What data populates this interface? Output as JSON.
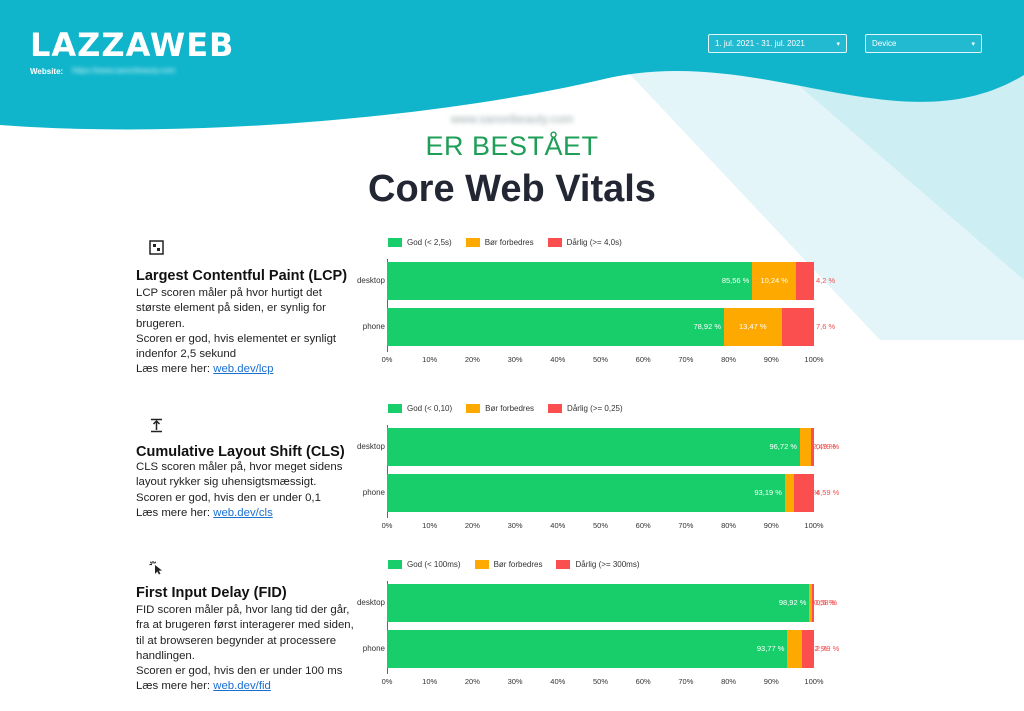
{
  "header": {
    "brand": "LAZZAWEB",
    "website_label": "Website:",
    "website_value": "https://www.sanoriteauty.com",
    "date_range": "1. jul. 2021 - 31. jul. 2021",
    "device_label": "Device"
  },
  "hero": {
    "url": "www.sanoribeauty.com",
    "status": "ER BESTÅET",
    "title": "Core Web Vitals"
  },
  "colors": {
    "good": "#17ce6a",
    "improve": "#fea900",
    "poor": "#fb4f4f",
    "header": "#10b5cc"
  },
  "metrics": [
    {
      "icon": "largest-contentful-paint-icon",
      "title": "Largest Contentful Paint (LCP)",
      "desc": [
        "LCP scoren måler på hvor hurtigt det",
        "største element på siden, er synlig for",
        "brugeren.",
        "Scoren er god, hvis elementet er synligt",
        "indenfor 2,5 sekund"
      ],
      "read_more_label": "Læs mere her:",
      "read_more_link": "web.dev/lcp",
      "legend": [
        "God (< 2,5s)",
        "Bør forbedres",
        "Dårlig (>= 4,0s)"
      ]
    },
    {
      "icon": "cumulative-layout-shift-icon",
      "title": "Cumulative Layout Shift (CLS)",
      "desc": [
        "CLS scoren måler på, hvor meget sidens",
        "layout rykker sig uhensigtsmæssigt.",
        "Scoren er god, hvis den er under 0,1"
      ],
      "read_more_label": "Læs mere her:",
      "read_more_link": "web.dev/cls",
      "legend": [
        "God (< 0,10)",
        "Bør forbedres",
        "Dårlig (>= 0,25)"
      ]
    },
    {
      "icon": "first-input-delay-icon",
      "title": "First Input Delay (FID)",
      "desc": [
        "FID scoren måler på, hvor lang tid der går,",
        "fra at brugeren først interagerer med siden,",
        "til at browseren begynder at processere",
        "handlingen.",
        "Scoren er god, hvis den er under 100 ms"
      ],
      "read_more_label": "Læs mere her:",
      "read_more_link": "web.dev/fid",
      "legend": [
        "God (< 100ms)",
        "Bør forbedres",
        "Dårlig (>= 300ms)"
      ]
    }
  ],
  "chart_data": [
    {
      "type": "bar",
      "orientation": "horizontal-stacked",
      "categories": [
        "desktop",
        "phone"
      ],
      "series": [
        {
          "name": "God (< 2,5s)",
          "values": [
            85.56,
            78.92
          ],
          "labels": [
            "85,56 %",
            "78,92 %"
          ]
        },
        {
          "name": "Bør forbedres",
          "values": [
            10.24,
            13.47
          ],
          "labels": [
            "10,24 %",
            "13,47 %"
          ]
        },
        {
          "name": "Dårlig (>= 4,0s)",
          "values": [
            4.2,
            7.6
          ],
          "labels": [
            "4,2 %",
            "7,6 %"
          ]
        }
      ],
      "xlim": [
        0,
        100
      ],
      "xticks": [
        "0%",
        "10%",
        "20%",
        "30%",
        "40%",
        "50%",
        "60%",
        "70%",
        "80%",
        "90%",
        "100%"
      ],
      "legend_position": "top"
    },
    {
      "type": "bar",
      "orientation": "horizontal-stacked",
      "categories": [
        "desktop",
        "phone"
      ],
      "series": [
        {
          "name": "God (< 0,10)",
          "values": [
            96.72,
            93.19
          ],
          "labels": [
            "96,72 %",
            "93,19 %"
          ]
        },
        {
          "name": "Bør forbedres",
          "values": [
            2.49,
            2.22
          ],
          "labels": [
            "2,49 %",
            "2,22 %"
          ]
        },
        {
          "name": "Dårlig (>= 0,25)",
          "values": [
            0.79,
            4.59
          ],
          "labels": [
            "0,79 %",
            "4,59 %"
          ]
        }
      ],
      "xlim": [
        0,
        100
      ],
      "xticks": [
        "0%",
        "10%",
        "20%",
        "30%",
        "40%",
        "50%",
        "60%",
        "70%",
        "80%",
        "90%",
        "100%"
      ],
      "legend_position": "top"
    },
    {
      "type": "bar",
      "orientation": "horizontal-stacked",
      "categories": [
        "desktop",
        "phone"
      ],
      "series": [
        {
          "name": "God (< 100ms)",
          "values": [
            98.92,
            93.77
          ],
          "labels": [
            "98,92 %",
            "93,77 %"
          ]
        },
        {
          "name": "Bør forbedres",
          "values": [
            0.58,
            3.42
          ],
          "labels": [
            "0,58 %",
            "3,42 %"
          ]
        },
        {
          "name": "Dårlig (>= 300ms)",
          "values": [
            0.5,
            2.79
          ],
          "labels": [
            "0,5 %",
            "2,79 %"
          ]
        }
      ],
      "xlim": [
        0,
        100
      ],
      "xticks": [
        "0%",
        "10%",
        "20%",
        "30%",
        "40%",
        "50%",
        "60%",
        "70%",
        "80%",
        "90%",
        "100%"
      ],
      "legend_position": "top"
    }
  ]
}
